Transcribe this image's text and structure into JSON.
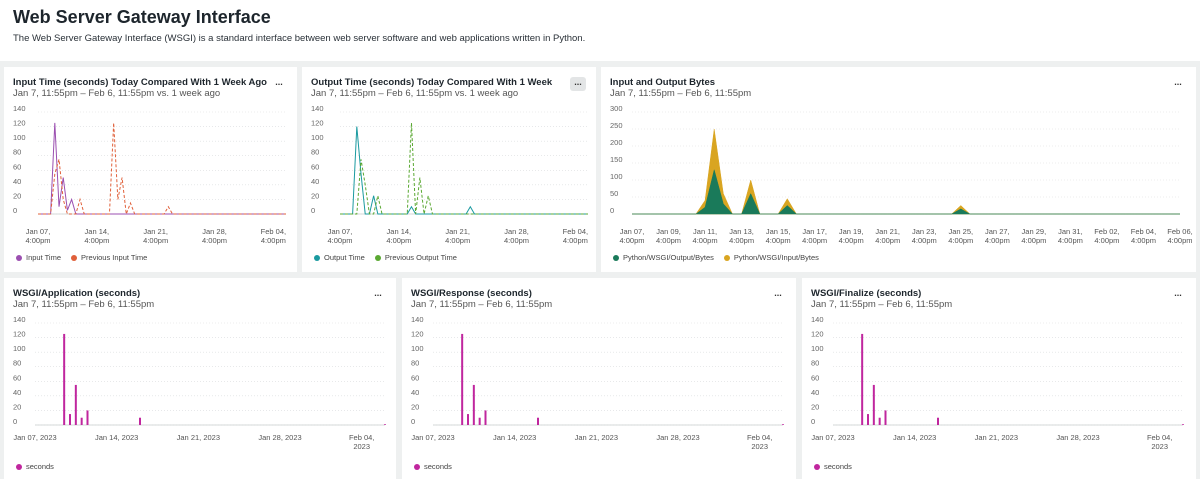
{
  "header": {
    "title": "Web Server Gateway Interface",
    "description": "The Web Server Gateway Interface (WSGI) is a standard interface between web server software and web applications written in Python."
  },
  "chart_data": [
    {
      "type": "line",
      "title": "Input Time (seconds) Today Compared With 1 Week Ago",
      "subtitle": "Jan 7, 11:55pm – Feb 6, 11:55pm vs. 1 week ago",
      "menu": "...",
      "categories": [
        "Jan 07, 4:00pm",
        null,
        null,
        null,
        null,
        null,
        null,
        null,
        null,
        null,
        null,
        null,
        null,
        null,
        "Jan 14, 4:00pm",
        null,
        null,
        null,
        null,
        null,
        null,
        null,
        null,
        null,
        null,
        null,
        null,
        null,
        "Jan 21, 4:00pm",
        null,
        null,
        null,
        null,
        null,
        null,
        null,
        null,
        null,
        null,
        null,
        null,
        null,
        "Jan 28, 4:00pm",
        null,
        null,
        null,
        null,
        null,
        null,
        null,
        null,
        null,
        null,
        null,
        null,
        null,
        "Feb 04, 4:00pm",
        null,
        null,
        null
      ],
      "series": [
        {
          "name": "Input Time",
          "color": "#9b4fb0",
          "style": "solid",
          "values": [
            0,
            0,
            0,
            0,
            125,
            10,
            50,
            5,
            20,
            0,
            0,
            0,
            0,
            0,
            0,
            0,
            0,
            0,
            0,
            0,
            0,
            0,
            0,
            0,
            0,
            0,
            0,
            0,
            0,
            0,
            0,
            0,
            0,
            0,
            0,
            0,
            0,
            0,
            0,
            0,
            0,
            0,
            0,
            0,
            0,
            0,
            0,
            0,
            0,
            0,
            0,
            0,
            0,
            0,
            0,
            0,
            0,
            0,
            0,
            0
          ]
        },
        {
          "name": "Previous Input Time",
          "color": "#e0603a",
          "style": "dashed",
          "values": [
            0,
            0,
            0,
            0,
            55,
            75,
            20,
            0,
            0,
            0,
            20,
            0,
            0,
            0,
            0,
            0,
            0,
            0,
            125,
            20,
            50,
            0,
            15,
            0,
            0,
            0,
            0,
            0,
            0,
            0,
            0,
            10,
            0,
            0,
            0,
            0,
            0,
            0,
            0,
            0,
            0,
            0,
            0,
            0,
            0,
            0,
            0,
            0,
            0,
            0,
            0,
            0,
            0,
            0,
            0,
            0,
            0,
            0,
            0,
            0
          ]
        }
      ],
      "ylim": [
        0,
        140
      ],
      "yticks": [
        0,
        20,
        40,
        60,
        80,
        100,
        120,
        140
      ],
      "grid": true
    },
    {
      "type": "line",
      "title": "Output Time (seconds) Today Compared With 1 Week",
      "subtitle": "Jan 7, 11:55pm – Feb 6, 11:55pm vs. 1 week ago",
      "menu": "...",
      "categories": [
        "Jan 07, 4:00pm",
        null,
        null,
        null,
        null,
        null,
        null,
        null,
        null,
        null,
        null,
        null,
        null,
        null,
        "Jan 14, 4:00pm",
        null,
        null,
        null,
        null,
        null,
        null,
        null,
        null,
        null,
        null,
        null,
        null,
        null,
        "Jan 21, 4:00pm",
        null,
        null,
        null,
        null,
        null,
        null,
        null,
        null,
        null,
        null,
        null,
        null,
        null,
        "Jan 28, 4:00pm",
        null,
        null,
        null,
        null,
        null,
        null,
        null,
        null,
        null,
        null,
        null,
        null,
        null,
        "Feb 04, 4:00pm",
        null,
        null,
        null
      ],
      "series": [
        {
          "name": "Output Time",
          "color": "#1a9aa0",
          "style": "solid",
          "values": [
            0,
            0,
            0,
            0,
            120,
            55,
            0,
            0,
            25,
            0,
            0,
            0,
            0,
            0,
            0,
            0,
            0,
            10,
            0,
            0,
            0,
            0,
            0,
            0,
            0,
            0,
            0,
            0,
            0,
            0,
            0,
            10,
            0,
            0,
            0,
            0,
            0,
            0,
            0,
            0,
            0,
            0,
            0,
            0,
            0,
            0,
            0,
            0,
            0,
            0,
            0,
            0,
            0,
            0,
            0,
            0,
            0,
            0,
            0,
            0
          ]
        },
        {
          "name": "Previous Output Time",
          "color": "#5aa832",
          "style": "dashed",
          "values": [
            0,
            0,
            0,
            0,
            0,
            75,
            40,
            0,
            0,
            25,
            0,
            0,
            0,
            0,
            0,
            0,
            0,
            125,
            0,
            50,
            0,
            25,
            0,
            0,
            0,
            0,
            0,
            0,
            0,
            0,
            0,
            0,
            0,
            0,
            0,
            0,
            0,
            0,
            0,
            0,
            0,
            0,
            0,
            0,
            0,
            0,
            0,
            0,
            0,
            0,
            0,
            0,
            0,
            0,
            0,
            0,
            0,
            0,
            0,
            0
          ]
        }
      ],
      "ylim": [
        0,
        140
      ],
      "yticks": [
        0,
        20,
        40,
        60,
        80,
        100,
        120,
        140
      ],
      "grid": true
    },
    {
      "type": "area",
      "title": "Input and Output Bytes",
      "subtitle": "Jan 7, 11:55pm – Feb 6, 11:55pm",
      "menu": "...",
      "categories": [
        "Jan 07, 4:00pm",
        null,
        null,
        null,
        "Jan 09, 4:00pm",
        null,
        null,
        null,
        "Jan 11, 4:00pm",
        null,
        null,
        null,
        "Jan 13, 4:00pm",
        null,
        null,
        null,
        "Jan 15, 4:00pm",
        null,
        null,
        null,
        "Jan 17, 4:00pm",
        null,
        null,
        null,
        "Jan 19, 4:00pm",
        null,
        null,
        null,
        "Jan 21, 4:00pm",
        null,
        null,
        null,
        "Jan 23, 4:00pm",
        null,
        null,
        null,
        "Jan 25, 4:00pm",
        null,
        null,
        null,
        "Jan 27, 4:00pm",
        null,
        null,
        null,
        "Jan 29, 4:00pm",
        null,
        null,
        null,
        "Jan 31, 4:00pm",
        null,
        null,
        null,
        "Feb 02, 4:00pm",
        null,
        null,
        null,
        "Feb 04, 4:00pm",
        null,
        null,
        null,
        "Feb 06, 4:00pm"
      ],
      "series": [
        {
          "name": "Python/WSGI/Output/Bytes",
          "color": "#1a7a5a",
          "values": [
            0,
            0,
            0,
            0,
            0,
            0,
            0,
            0,
            20,
            130,
            30,
            0,
            0,
            60,
            0,
            0,
            0,
            25,
            0,
            0,
            0,
            0,
            0,
            0,
            0,
            0,
            0,
            0,
            0,
            0,
            0,
            0,
            0,
            0,
            0,
            0,
            15,
            0,
            0,
            0,
            0,
            0,
            0,
            0,
            0,
            0,
            0,
            0,
            0,
            0,
            0,
            0,
            0,
            0,
            0,
            0,
            0,
            0,
            0,
            0,
            0
          ]
        },
        {
          "name": "Python/WSGI/Input/Bytes",
          "color": "#d9a521",
          "values": [
            0,
            0,
            0,
            0,
            0,
            0,
            0,
            0,
            40,
            250,
            60,
            0,
            0,
            100,
            0,
            0,
            0,
            45,
            0,
            0,
            0,
            0,
            0,
            0,
            0,
            0,
            0,
            0,
            0,
            0,
            0,
            0,
            0,
            0,
            0,
            0,
            25,
            0,
            0,
            0,
            0,
            0,
            0,
            0,
            0,
            0,
            0,
            0,
            0,
            0,
            0,
            0,
            0,
            0,
            0,
            0,
            0,
            0,
            0,
            0,
            0
          ]
        }
      ],
      "ylim": [
        0,
        300
      ],
      "yticks": [
        0,
        50,
        100,
        150,
        200,
        250,
        300
      ],
      "grid": true
    },
    {
      "type": "bar",
      "title": "WSGI/Application (seconds)",
      "subtitle": "Jan 7, 11:55pm – Feb 6, 11:55pm",
      "menu": "...",
      "categories": [
        "Jan 07, 2023",
        null,
        null,
        null,
        null,
        null,
        null,
        null,
        null,
        null,
        null,
        null,
        null,
        null,
        "Jan 14, 2023",
        null,
        null,
        null,
        null,
        null,
        null,
        null,
        null,
        null,
        null,
        null,
        null,
        null,
        "Jan 21, 2023",
        null,
        null,
        null,
        null,
        null,
        null,
        null,
        null,
        null,
        null,
        null,
        null,
        null,
        "Jan 28, 2023",
        null,
        null,
        null,
        null,
        null,
        null,
        null,
        null,
        null,
        null,
        null,
        null,
        null,
        "Feb 04, 2023",
        null,
        null,
        null,
        null
      ],
      "series": [
        {
          "name": "seconds",
          "color": "#c0269e",
          "values": [
            0,
            0,
            0,
            0,
            0,
            125,
            15,
            55,
            10,
            20,
            0,
            0,
            0,
            0,
            0,
            0,
            0,
            0,
            10,
            0,
            0,
            0,
            0,
            0,
            0,
            0,
            0,
            0,
            0,
            0,
            0,
            0,
            0,
            0,
            0,
            0,
            0,
            0,
            0,
            0,
            0,
            0,
            0,
            0,
            0,
            0,
            0,
            0,
            0,
            0,
            0,
            0,
            0,
            0,
            0,
            0,
            0,
            0,
            0,
            0,
            1
          ]
        }
      ],
      "ylim": [
        0,
        140
      ],
      "yticks": [
        0,
        20,
        40,
        60,
        80,
        100,
        120,
        140
      ],
      "grid": true
    },
    {
      "type": "bar",
      "title": "WSGI/Response (seconds)",
      "subtitle": "Jan 7, 11:55pm – Feb 6, 11:55pm",
      "menu": "...",
      "categories": [
        "Jan 07, 2023",
        null,
        null,
        null,
        null,
        null,
        null,
        null,
        null,
        null,
        null,
        null,
        null,
        null,
        "Jan 14, 2023",
        null,
        null,
        null,
        null,
        null,
        null,
        null,
        null,
        null,
        null,
        null,
        null,
        null,
        "Jan 21, 2023",
        null,
        null,
        null,
        null,
        null,
        null,
        null,
        null,
        null,
        null,
        null,
        null,
        null,
        "Jan 28, 2023",
        null,
        null,
        null,
        null,
        null,
        null,
        null,
        null,
        null,
        null,
        null,
        null,
        null,
        "Feb 04, 2023",
        null,
        null,
        null,
        null
      ],
      "series": [
        {
          "name": "seconds",
          "color": "#c0269e",
          "values": [
            0,
            0,
            0,
            0,
            0,
            125,
            15,
            55,
            10,
            20,
            0,
            0,
            0,
            0,
            0,
            0,
            0,
            0,
            10,
            0,
            0,
            0,
            0,
            0,
            0,
            0,
            0,
            0,
            0,
            0,
            0,
            0,
            0,
            0,
            0,
            0,
            0,
            0,
            0,
            0,
            0,
            0,
            0,
            0,
            0,
            0,
            0,
            0,
            0,
            0,
            0,
            0,
            0,
            0,
            0,
            0,
            0,
            0,
            0,
            0,
            1
          ]
        }
      ],
      "ylim": [
        0,
        140
      ],
      "yticks": [
        0,
        20,
        40,
        60,
        80,
        100,
        120,
        140
      ],
      "grid": true
    },
    {
      "type": "bar",
      "title": "WSGI/Finalize (seconds)",
      "subtitle": "Jan 7, 11:55pm – Feb 6, 11:55pm",
      "menu": "...",
      "categories": [
        "Jan 07, 2023",
        null,
        null,
        null,
        null,
        null,
        null,
        null,
        null,
        null,
        null,
        null,
        null,
        null,
        "Jan 14, 2023",
        null,
        null,
        null,
        null,
        null,
        null,
        null,
        null,
        null,
        null,
        null,
        null,
        null,
        "Jan 21, 2023",
        null,
        null,
        null,
        null,
        null,
        null,
        null,
        null,
        null,
        null,
        null,
        null,
        null,
        "Jan 28, 2023",
        null,
        null,
        null,
        null,
        null,
        null,
        null,
        null,
        null,
        null,
        null,
        null,
        null,
        "Feb 04, 2023",
        null,
        null,
        null,
        null
      ],
      "series": [
        {
          "name": "seconds",
          "color": "#c0269e",
          "values": [
            0,
            0,
            0,
            0,
            0,
            125,
            15,
            55,
            10,
            20,
            0,
            0,
            0,
            0,
            0,
            0,
            0,
            0,
            10,
            0,
            0,
            0,
            0,
            0,
            0,
            0,
            0,
            0,
            0,
            0,
            0,
            0,
            0,
            0,
            0,
            0,
            0,
            0,
            0,
            0,
            0,
            0,
            0,
            0,
            0,
            0,
            0,
            0,
            0,
            0,
            0,
            0,
            0,
            0,
            0,
            0,
            0,
            0,
            0,
            0,
            1
          ]
        }
      ],
      "ylim": [
        0,
        140
      ],
      "yticks": [
        0,
        20,
        40,
        60,
        80,
        100,
        120,
        140
      ],
      "grid": true
    }
  ]
}
